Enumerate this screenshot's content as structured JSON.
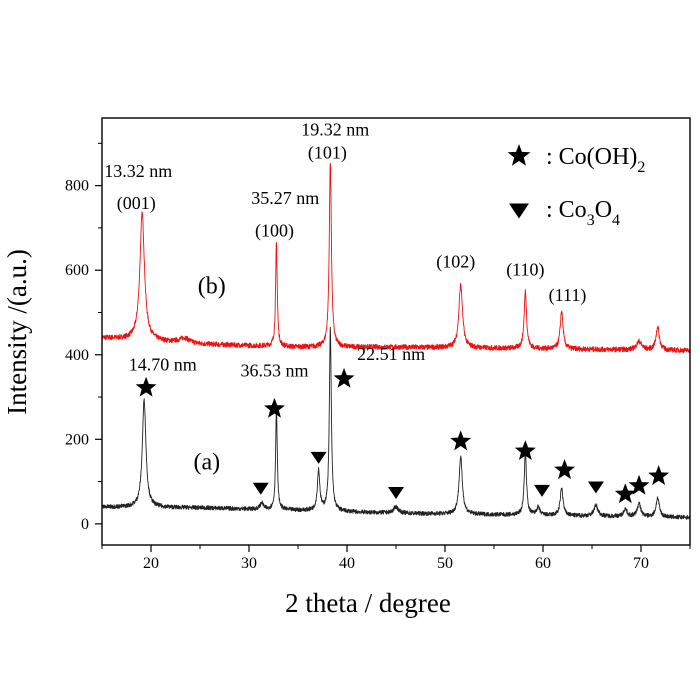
{
  "chart_data": {
    "type": "line",
    "xlabel": "2 theta / degree",
    "ylabel": "Intensity /(a.u.)",
    "xlim": [
      15,
      75
    ],
    "ylim": [
      -50,
      960
    ],
    "x_ticks": [
      "20",
      "30",
      "40",
      "50",
      "60",
      "70"
    ],
    "y_ticks": [
      "0",
      "200",
      "400",
      "600",
      "800"
    ],
    "grid": false,
    "legend_position": "top-right",
    "legend": [
      {
        "symbol": "star",
        "text": ": Co(OH)",
        "sub": "2",
        "tail": ""
      },
      {
        "symbol": "triangle-down",
        "text": ": Co",
        "sub": "3",
        "tail": "O",
        "sub2": "4"
      }
    ],
    "series": [
      {
        "name": "(b)",
        "color": "#ee1111",
        "baseline": 420,
        "baseline_slope_points": [
          [
            15,
            440
          ],
          [
            25,
            425
          ],
          [
            35,
            418
          ],
          [
            45,
            418
          ],
          [
            75,
            410
          ]
        ],
        "peaks": [
          {
            "x": 19.1,
            "height": 300,
            "width": 0.28
          },
          {
            "x": 23.4,
            "height": 12,
            "width": 0.6
          },
          {
            "x": 32.8,
            "height": 245,
            "width": 0.1
          },
          {
            "x": 38.3,
            "height": 440,
            "width": 0.13
          },
          {
            "x": 51.6,
            "height": 150,
            "width": 0.22
          },
          {
            "x": 58.2,
            "height": 135,
            "width": 0.15
          },
          {
            "x": 61.9,
            "height": 90,
            "width": 0.17
          },
          {
            "x": 69.8,
            "height": 20,
            "width": 0.3
          },
          {
            "x": 71.7,
            "height": 55,
            "width": 0.2
          }
        ],
        "noise": 6
      },
      {
        "name": "(a)",
        "color": "#222222",
        "baseline": 30,
        "baseline_slope_points": [
          [
            15,
            40
          ],
          [
            25,
            38
          ],
          [
            35,
            32
          ],
          [
            45,
            25
          ],
          [
            75,
            15
          ]
        ],
        "peaks": [
          {
            "x": 19.3,
            "height": 255,
            "width": 0.22
          },
          {
            "x": 31.3,
            "height": 15,
            "width": 0.2
          },
          {
            "x": 32.8,
            "height": 240,
            "width": 0.1
          },
          {
            "x": 37.1,
            "height": 95,
            "width": 0.15
          },
          {
            "x": 38.3,
            "height": 430,
            "width": 0.12
          },
          {
            "x": 45.0,
            "height": 15,
            "width": 0.3
          },
          {
            "x": 51.6,
            "height": 135,
            "width": 0.2
          },
          {
            "x": 58.2,
            "height": 145,
            "width": 0.14
          },
          {
            "x": 59.5,
            "height": 18,
            "width": 0.2
          },
          {
            "x": 61.9,
            "height": 65,
            "width": 0.17
          },
          {
            "x": 65.4,
            "height": 25,
            "width": 0.25
          },
          {
            "x": 68.4,
            "height": 18,
            "width": 0.2
          },
          {
            "x": 69.8,
            "height": 30,
            "width": 0.22
          },
          {
            "x": 71.7,
            "height": 45,
            "width": 0.2
          }
        ],
        "noise": 5
      }
    ],
    "curve_labels": [
      {
        "text": "(b)",
        "x": 26.2,
        "y": 545
      },
      {
        "text": "(a)",
        "x": 25.7,
        "y": 128
      }
    ],
    "annotations": [
      {
        "text": "13.32 nm",
        "x": 18.7,
        "y": 820
      },
      {
        "text": "(001)",
        "x": 18.5,
        "y": 745
      },
      {
        "text": "35.27 nm",
        "x": 33.7,
        "y": 756
      },
      {
        "text": "(100)",
        "x": 32.6,
        "y": 680
      },
      {
        "text": "19.32 nm",
        "x": 38.8,
        "y": 919
      },
      {
        "text": "(101)",
        "x": 38.0,
        "y": 864
      },
      {
        "text": "(102)",
        "x": 51.1,
        "y": 606
      },
      {
        "text": "(110)",
        "x": 58.2,
        "y": 588
      },
      {
        "text": "(111)",
        "x": 62.5,
        "y": 527
      },
      {
        "text": "14.70 nm",
        "x": 21.2,
        "y": 363
      },
      {
        "text": "36.53 nm",
        "x": 32.6,
        "y": 348
      },
      {
        "text": "22.51 nm",
        "x": 44.5,
        "y": 387
      }
    ],
    "markers_co_oh2": [
      {
        "x": 19.5,
        "y": 322
      },
      {
        "x": 32.6,
        "y": 272
      },
      {
        "x": 39.7,
        "y": 343
      },
      {
        "x": 51.6,
        "y": 195
      },
      {
        "x": 58.2,
        "y": 172
      },
      {
        "x": 62.2,
        "y": 127
      },
      {
        "x": 68.4,
        "y": 70
      },
      {
        "x": 69.8,
        "y": 90
      },
      {
        "x": 71.8,
        "y": 113
      }
    ],
    "markers_co3o4": [
      {
        "x": 31.2,
        "y": 85
      },
      {
        "x": 37.1,
        "y": 158
      },
      {
        "x": 45.0,
        "y": 75
      },
      {
        "x": 59.9,
        "y": 80
      },
      {
        "x": 65.4,
        "y": 88
      }
    ]
  }
}
